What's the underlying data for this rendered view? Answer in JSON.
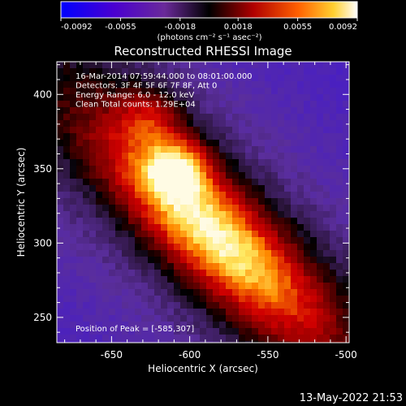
{
  "chart_data": {
    "type": "heatmap",
    "title": "Reconstructed RHESSI Image",
    "xlabel": "Heliocentric X (arcsec)",
    "ylabel": "Heliocentric Y (arcsec)",
    "xlim": [
      -685,
      -498
    ],
    "ylim": [
      233,
      422
    ],
    "x_ticks": [
      -650,
      -600,
      -550,
      -500
    ],
    "y_ticks": [
      250,
      300,
      350,
      400
    ],
    "colorbar": {
      "label": "(photons cm⁻² s⁻¹ asec⁻²)",
      "range": [
        -0.0092,
        0.0092
      ],
      "ticks": [
        "-0.0092",
        "-0.0055",
        "-0.0018",
        "0.0018",
        "0.0055",
        "0.0092"
      ],
      "tick_values": [
        -0.0092,
        -0.0055,
        -0.0018,
        0.0018,
        0.0055,
        0.0092
      ]
    },
    "colors": {
      "purple": "#5a2e9c",
      "black": "#000000",
      "red": "#d00000",
      "orange": "#ff8a00",
      "yellow": "#ffe860",
      "white": "#ffffff",
      "blue": "#0000ff"
    },
    "peak": {
      "x": -585,
      "y": 307
    },
    "info_lines": [
      "16-Mar-2014 07:59:44.000 to 08:01:00.000",
      "Detectors: 3F 4F 5F 6F 7F 8F, Att 0",
      "Energy Range: 6.0 - 12.0 keV",
      "Clean    Total counts: 1.29E+04"
    ],
    "peak_label": "Position of Peak = [-585,307]",
    "timestamp": "13-May-2022 21:53"
  }
}
